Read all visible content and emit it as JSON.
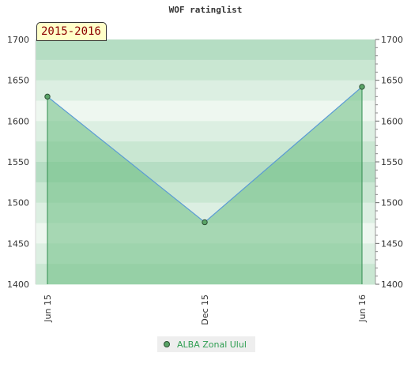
{
  "chart_data": {
    "type": "area",
    "title": "WOF ratinglist",
    "annotation": "2015-2016",
    "x": [
      "Jun 15",
      "Dec 15",
      "Jun 16"
    ],
    "series": [
      {
        "name": "ALBA Zonal Ulul",
        "values": [
          1630,
          1476,
          1642
        ]
      }
    ],
    "ylim": [
      1400,
      1700
    ],
    "yticks": [
      1400,
      1450,
      1500,
      1550,
      1600,
      1650,
      1700
    ],
    "y_axis_both_sides": true,
    "legend": "bottom-center",
    "colors": {
      "line": "#5b9bd5",
      "fill": "#6bbd82",
      "marker": "#5aa467",
      "drop_line": "#2e8b4e",
      "band_dark": "#b3ddc1",
      "band_light": "#cde8d6"
    }
  }
}
